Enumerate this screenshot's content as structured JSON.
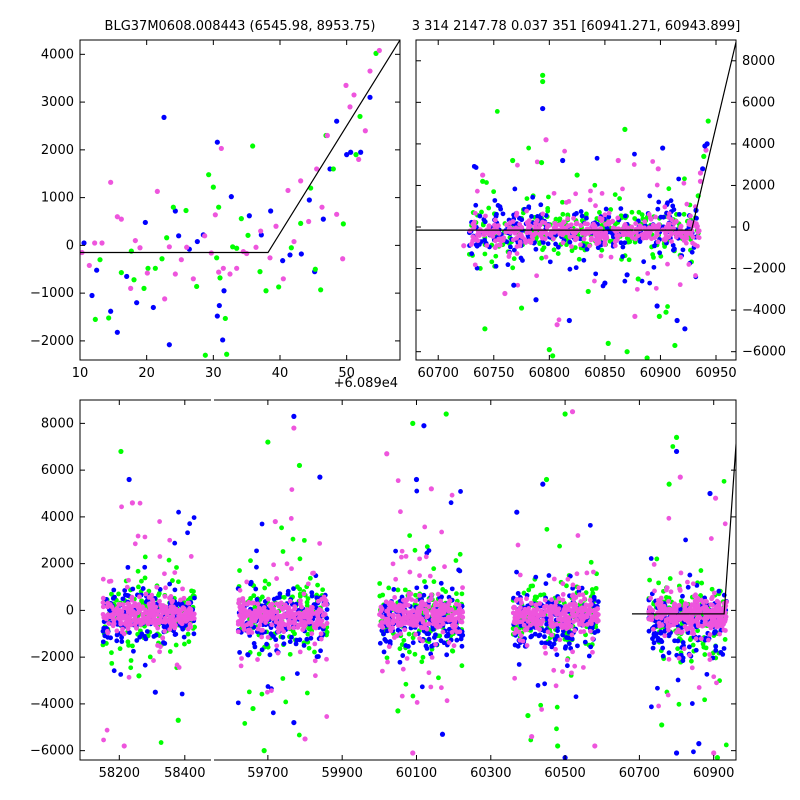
{
  "colors": {
    "blue": "#0000ff",
    "green": "#00ff00",
    "pink": "#ee55dd",
    "line": "#000000"
  },
  "chart_data": [
    {
      "type": "scatter",
      "title": "BLG37M0608.008443 (6545.98, 8953.75)",
      "offset_label": "+6.089e4",
      "xlim": [
        10,
        58
      ],
      "ylim": [
        -2400,
        4300
      ],
      "xticks": [
        10,
        20,
        30,
        40,
        50
      ],
      "xtick_labels": [
        "10",
        "20",
        "30",
        "40",
        "50"
      ],
      "yticks": [
        -2000,
        -1000,
        0,
        1000,
        2000,
        3000,
        4000
      ],
      "ytick_labels": [
        "−2000",
        "−1000",
        "0",
        "1000",
        "2000",
        "3000",
        "4000"
      ],
      "model_line": {
        "x": [
          10,
          38.2,
          58
        ],
        "y": [
          -150,
          -150,
          4300
        ]
      },
      "series": [
        {
          "name": "blue",
          "color": "#0000ff",
          "points": [
            [
              10.6,
              50
            ],
            [
              11.8,
              -1050
            ],
            [
              12.5,
              -520
            ],
            [
              14.6,
              -1380
            ],
            [
              15.6,
              -1820
            ],
            [
              17,
              -650
            ],
            [
              18.5,
              -1200
            ],
            [
              19.8,
              480
            ],
            [
              21,
              -1300
            ],
            [
              22.6,
              2680
            ],
            [
              23.4,
              -2080
            ],
            [
              24.3,
              720
            ],
            [
              24.8,
              200
            ],
            [
              26.4,
              -80
            ],
            [
              27.6,
              80
            ],
            [
              28.5,
              220
            ],
            [
              30.6,
              2160
            ],
            [
              30.6,
              -1480
            ],
            [
              30.9,
              -1260
            ],
            [
              31.4,
              -1980
            ],
            [
              31.6,
              -950
            ],
            [
              32.7,
              1020
            ],
            [
              35.4,
              620
            ],
            [
              37.2,
              220
            ],
            [
              38.6,
              720
            ],
            [
              40.4,
              -320
            ],
            [
              41.5,
              -200
            ],
            [
              43.2,
              -180
            ],
            [
              44.4,
              950
            ],
            [
              45.2,
              -550
            ],
            [
              46.5,
              550
            ],
            [
              47.5,
              1600
            ],
            [
              48.5,
              2600
            ],
            [
              50,
              1900
            ],
            [
              50.6,
              1950
            ],
            [
              52.1,
              1950
            ],
            [
              53.5,
              3100
            ]
          ]
        },
        {
          "name": "green",
          "color": "#00ff00",
          "points": [
            [
              12.3,
              -1550
            ],
            [
              13,
              -300
            ],
            [
              14.3,
              -1520
            ],
            [
              16.2,
              -570
            ],
            [
              17.7,
              -120
            ],
            [
              18.1,
              -720
            ],
            [
              19.6,
              -900
            ],
            [
              20.2,
              -480
            ],
            [
              21.3,
              -480
            ],
            [
              22.3,
              -280
            ],
            [
              23,
              160
            ],
            [
              24,
              800
            ],
            [
              25.9,
              730
            ],
            [
              27.5,
              -860
            ],
            [
              28.8,
              -2300
            ],
            [
              29.3,
              1480
            ],
            [
              30,
              1220
            ],
            [
              30.5,
              -260
            ],
            [
              30.8,
              800
            ],
            [
              31,
              -680
            ],
            [
              31.8,
              -1530
            ],
            [
              32,
              -2280
            ],
            [
              32.9,
              -30
            ],
            [
              33.5,
              -60
            ],
            [
              34.2,
              560
            ],
            [
              35.2,
              210
            ],
            [
              35.9,
              2080
            ],
            [
              37,
              -550
            ],
            [
              37.9,
              -950
            ],
            [
              39.8,
              -870
            ],
            [
              41.7,
              -50
            ],
            [
              43.1,
              460
            ],
            [
              44.6,
              1200
            ],
            [
              45.3,
              -500
            ],
            [
              46.1,
              -930
            ],
            [
              46.9,
              2300
            ],
            [
              48,
              1600
            ],
            [
              49.5,
              450
            ],
            [
              51.4,
              1900
            ],
            [
              52,
              2700
            ],
            [
              54.4,
              4020
            ]
          ]
        },
        {
          "name": "pink",
          "color": "#ee55dd",
          "points": [
            [
              10.3,
              -150
            ],
            [
              11.4,
              -420
            ],
            [
              12.2,
              50
            ],
            [
              13.3,
              50
            ],
            [
              14.6,
              1320
            ],
            [
              15.6,
              600
            ],
            [
              16.2,
              550
            ],
            [
              17.6,
              -900
            ],
            [
              18.3,
              100
            ],
            [
              19,
              -50
            ],
            [
              20.1,
              -580
            ],
            [
              21.6,
              1130
            ],
            [
              22.7,
              -1120
            ],
            [
              23.4,
              -30
            ],
            [
              24.3,
              -600
            ],
            [
              25.2,
              -300
            ],
            [
              26,
              -40
            ],
            [
              27,
              -700
            ],
            [
              28.7,
              200
            ],
            [
              29.7,
              -160
            ],
            [
              30.3,
              640
            ],
            [
              30.8,
              -560
            ],
            [
              31.2,
              2030
            ],
            [
              31.5,
              -480
            ],
            [
              32.5,
              -600
            ],
            [
              33.5,
              -480
            ],
            [
              34.5,
              -130
            ],
            [
              35,
              -170
            ],
            [
              36.4,
              -40
            ],
            [
              37.1,
              300
            ],
            [
              38.5,
              -260
            ],
            [
              39.4,
              400
            ],
            [
              40.5,
              -700
            ],
            [
              41.2,
              1150
            ],
            [
              42.1,
              80
            ],
            [
              43.1,
              1350
            ],
            [
              44.3,
              500
            ],
            [
              45.5,
              1600
            ],
            [
              46.3,
              800
            ],
            [
              47.1,
              2300
            ],
            [
              48.5,
              650
            ],
            [
              49.4,
              -280
            ],
            [
              49.9,
              3350
            ],
            [
              50.5,
              2900
            ],
            [
              51.1,
              3150
            ],
            [
              51.8,
              1800
            ],
            [
              52.8,
              2400
            ],
            [
              53.5,
              3650
            ],
            [
              54.9,
              4080
            ]
          ]
        }
      ]
    },
    {
      "type": "scatter",
      "title": "3 314 2147.78 0.037 351 [60941.271, 60943.899]",
      "xlim": [
        60680,
        60968
      ],
      "ylim": [
        -6400,
        9000
      ],
      "xticks": [
        60700,
        60750,
        60800,
        60850,
        60900,
        60950
      ],
      "xtick_labels": [
        "60700",
        "60750",
        "60800",
        "60850",
        "60900",
        "60950"
      ],
      "yticks": [
        -6000,
        -4000,
        -2000,
        0,
        2000,
        4000,
        6000,
        8000
      ],
      "ytick_labels": [
        "−6000",
        "−4000",
        "−2000",
        "0",
        "2000",
        "4000",
        "6000",
        "8000"
      ],
      "model_line": {
        "x": [
          60680,
          60928,
          60968
        ],
        "y": [
          -150,
          -150,
          8900
        ]
      },
      "cloud": {
        "x_range": [
          60728,
          60935
        ],
        "center": -200,
        "spread": 600
      },
      "outliers": [
        {
          "color": "#00ff00",
          "points": [
            [
              60794,
              7300
            ],
            [
              60794,
              7000
            ],
            [
              60793,
              3100
            ],
            [
              60767,
              3200
            ],
            [
              60740,
              2200
            ],
            [
              60742,
              -4900
            ],
            [
              60800,
              -5900
            ],
            [
              60803,
              -6200
            ],
            [
              60870,
              -6000
            ],
            [
              60888,
              -6300
            ],
            [
              60899,
              -4300
            ],
            [
              60905,
              -4100
            ],
            [
              60913,
              -5700
            ],
            [
              60868,
              4700
            ],
            [
              60775,
              -3900
            ],
            [
              60853,
              -5600
            ],
            [
              60880,
              -2500
            ],
            [
              60835,
              -3100
            ],
            [
              60825,
              2500
            ]
          ]
        },
        {
          "color": "#0000ff",
          "points": [
            [
              60794,
              5700
            ],
            [
              60788,
              -3500
            ],
            [
              60818,
              -4500
            ],
            [
              60870,
              -2300
            ],
            [
              60902,
              3800
            ],
            [
              60915,
              -4500
            ],
            [
              60922,
              -4900
            ],
            [
              60850,
              -2700
            ],
            [
              60768,
              -2800
            ],
            [
              60812,
              3200
            ],
            [
              60897,
              -3800
            ]
          ]
        },
        {
          "color": "#ee55dd",
          "points": [
            [
              60797,
              4200
            ],
            [
              60807,
              -4700
            ],
            [
              60862,
              3200
            ],
            [
              60877,
              -4300
            ],
            [
              60898,
              2800
            ],
            [
              60760,
              -3200
            ],
            [
              60740,
              2500
            ],
            [
              60723,
              -900
            ]
          ]
        }
      ],
      "rise_points": [
        [
          60930,
          200
        ],
        [
          60932,
          800
        ],
        [
          60934,
          1500
        ],
        [
          60936,
          2200
        ],
        [
          60938,
          2800
        ],
        [
          60939,
          3400
        ],
        [
          60941,
          3700
        ],
        [
          60942,
          4000
        ],
        [
          60943,
          5100
        ],
        [
          60936,
          2600
        ],
        [
          60940,
          3900
        ]
      ]
    },
    {
      "type": "scatter",
      "title": "",
      "ylim": [
        -6400,
        9000
      ],
      "yticks": [
        -6000,
        -4000,
        -2000,
        0,
        2000,
        4000,
        6000,
        8000
      ],
      "ytick_labels": [
        "−6000",
        "−4000",
        "−2000",
        "0",
        "2000",
        "4000",
        "6000",
        "8000"
      ],
      "xticks": [
        58200,
        58400,
        59700,
        59900,
        60100,
        60300,
        60500,
        60700,
        60900
      ],
      "xtick_labels": [
        "58200",
        "58400",
        "59700",
        "59900",
        "60100",
        "60300",
        "60500",
        "60700",
        "60900"
      ],
      "segments": [
        {
          "xlim": [
            58080,
            58480
          ],
          "cloud": [
            58150,
            58430
          ],
          "outliers": [
            [
              58205,
              6800
            ],
            [
              58230,
              5600
            ],
            [
              58240,
              4600
            ],
            [
              58380,
              -4700
            ],
            [
              58310,
              -3500
            ],
            [
              58215,
              -5800
            ],
            [
              58260,
              -2800
            ]
          ]
        },
        {
          "xlim": [
            59555,
            60960
          ],
          "cloud": [
            59620,
            59860
          ],
          "outliers": [
            [
              59700,
              7200
            ],
            [
              59770,
              8300
            ],
            [
              59770,
              7800
            ],
            [
              59785,
              6200
            ],
            [
              59840,
              5700
            ],
            [
              59720,
              3800
            ],
            [
              59690,
              -6000
            ],
            [
              59770,
              -4800
            ],
            [
              59800,
              -5500
            ],
            [
              59660,
              -4200
            ]
          ]
        },
        {
          "cloud": [
            60000,
            60225
          ],
          "outliers": [
            [
              60090,
              8000
            ],
            [
              60120,
              7900
            ],
            [
              60140,
              5200
            ],
            [
              60180,
              8400
            ],
            [
              60100,
              5600
            ],
            [
              60020,
              6700
            ],
            [
              60050,
              -4300
            ],
            [
              60170,
              -5300
            ],
            [
              60090,
              -6100
            ]
          ]
        },
        {
          "cloud": [
            60360,
            60590
          ],
          "outliers": [
            [
              60450,
              5600
            ],
            [
              60440,
              5400
            ],
            [
              60520,
              8500
            ],
            [
              60500,
              8400
            ],
            [
              60370,
              4200
            ],
            [
              60410,
              -5400
            ],
            [
              60480,
              -5800
            ],
            [
              60500,
              -6300
            ],
            [
              60580,
              -5800
            ],
            [
              60400,
              -4500
            ]
          ]
        },
        {
          "cloud": [
            60725,
            60935
          ],
          "outliers": [
            [
              60800,
              7400
            ],
            [
              60800,
              6800
            ],
            [
              60810,
              5700
            ],
            [
              60780,
              5400
            ],
            [
              60890,
              5000
            ],
            [
              60905,
              4800
            ],
            [
              60760,
              -4900
            ],
            [
              60800,
              -6100
            ],
            [
              60900,
              -6100
            ],
            [
              60910,
              -6300
            ],
            [
              60860,
              -5700
            ]
          ]
        }
      ],
      "model_line": {
        "x": [
          60680,
          60928,
          60968
        ],
        "y": [
          -150,
          -150,
          8900
        ]
      }
    }
  ]
}
